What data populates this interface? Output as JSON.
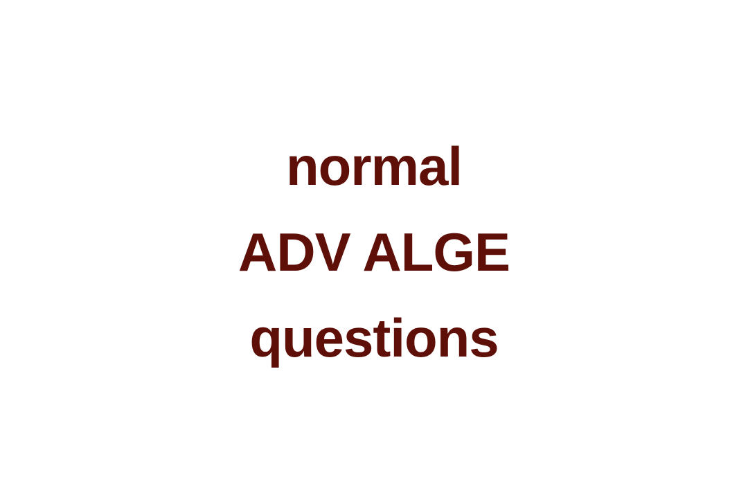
{
  "title": {
    "lines": [
      "normal",
      "ADV ALGE",
      "questions"
    ],
    "color": "#5e0f07"
  },
  "background_color": "#ffffff"
}
